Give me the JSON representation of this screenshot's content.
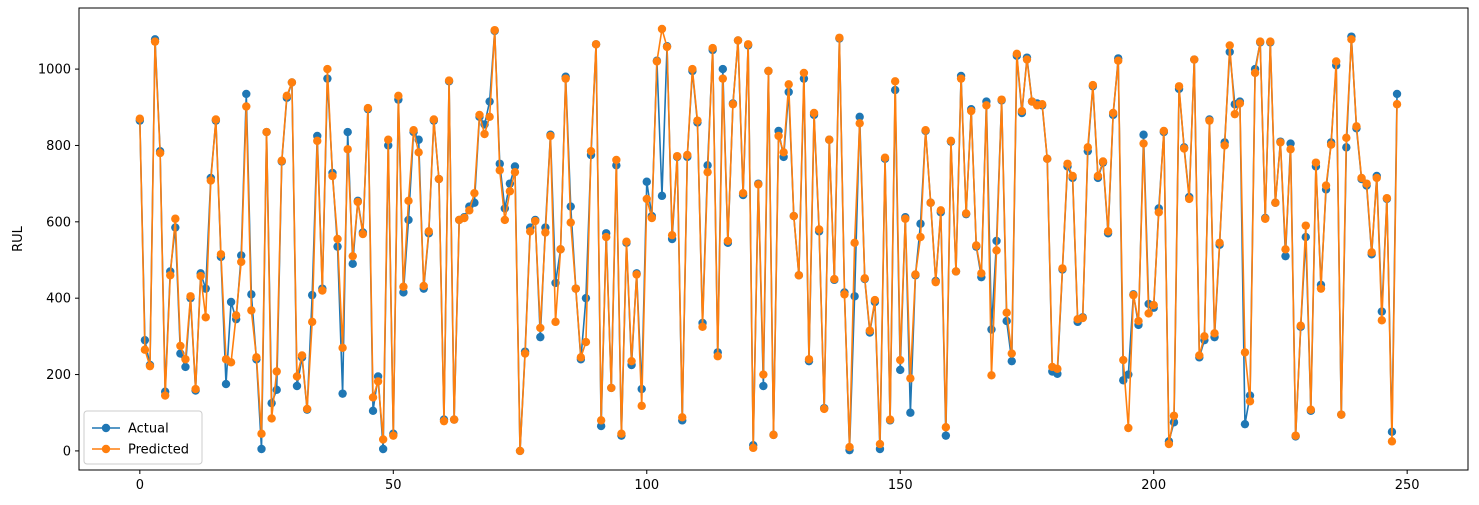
{
  "chart_data": {
    "type": "line",
    "title": "",
    "xlabel": "",
    "ylabel": "RUL",
    "xlim": [
      -12,
      262
    ],
    "ylim": [
      -50,
      1160
    ],
    "xticks": [
      0,
      50,
      100,
      150,
      200,
      250
    ],
    "yticks": [
      0,
      200,
      400,
      600,
      800,
      1000
    ],
    "grid": false,
    "legend_position": "lower-left",
    "x_start": 0,
    "series": [
      {
        "name": "Actual",
        "color": "#1f77b4",
        "marker": "circle",
        "values": [
          865,
          290,
          225,
          1078,
          785,
          155,
          470,
          585,
          255,
          220,
          400,
          158,
          465,
          425,
          715,
          865,
          508,
          175,
          390,
          345,
          512,
          935,
          410,
          240,
          5,
          835,
          125,
          160,
          758,
          925,
          965,
          170,
          245,
          108,
          408,
          825,
          425,
          975,
          728,
          535,
          150,
          835,
          490,
          655,
          572,
          895,
          105,
          195,
          5,
          800,
          45,
          920,
          415,
          605,
          835,
          815,
          425,
          570,
          865,
          712,
          82,
          968,
          82,
          605,
          612,
          640,
          650,
          875,
          855,
          915,
          1100,
          752,
          635,
          700,
          745,
          0,
          260,
          585,
          605,
          298,
          585,
          828,
          440,
          528,
          980,
          640,
          425,
          240,
          400,
          775,
          1065,
          65,
          570,
          165,
          748,
          40,
          545,
          225,
          465,
          162,
          705,
          615,
          1022,
          668,
          1060,
          555,
          770,
          80,
          770,
          995,
          860,
          335,
          748,
          1050,
          258,
          1000,
          545,
          910,
          1075,
          670,
          1062,
          15,
          700,
          170,
          995,
          42,
          838,
          770,
          940,
          615,
          460,
          975,
          235,
          880,
          575,
          112,
          815,
          448,
          1080,
          415,
          2,
          405,
          875,
          450,
          310,
          390,
          5,
          765,
          80,
          945,
          212,
          612,
          100,
          460,
          595,
          838,
          650,
          445,
          625,
          40,
          810,
          470,
          982,
          620,
          895,
          535,
          455,
          915,
          318,
          550,
          918,
          340,
          235,
          1035,
          885,
          1030,
          915,
          910,
          905,
          765,
          208,
          202,
          475,
          745,
          715,
          338,
          350,
          785,
          955,
          715,
          755,
          570,
          880,
          1028,
          185,
          200,
          410,
          330,
          828,
          385,
          375,
          635,
          835,
          25,
          75,
          948,
          795,
          665,
          1025,
          245,
          290,
          868,
          298,
          540,
          808,
          1045,
          908,
          915,
          70,
          145,
          1000,
          1070,
          610,
          1070,
          650,
          810,
          510,
          805,
          38,
          325,
          560,
          105,
          745,
          435,
          685,
          808,
          1010,
          95,
          795,
          1085,
          845,
          712,
          695,
          515,
          720,
          365,
          660,
          50,
          935
        ]
      },
      {
        "name": "Predicted",
        "color": "#ff7f0e",
        "marker": "circle",
        "values": [
          870,
          265,
          222,
          1072,
          780,
          145,
          460,
          608,
          275,
          240,
          405,
          162,
          458,
          350,
          708,
          868,
          515,
          240,
          232,
          355,
          495,
          902,
          368,
          245,
          45,
          835,
          85,
          208,
          760,
          930,
          965,
          195,
          250,
          110,
          338,
          812,
          420,
          1000,
          720,
          555,
          270,
          790,
          510,
          652,
          568,
          898,
          140,
          182,
          30,
          815,
          40,
          930,
          430,
          655,
          840,
          782,
          432,
          575,
          868,
          712,
          78,
          970,
          82,
          605,
          610,
          630,
          675,
          880,
          830,
          875,
          1102,
          735,
          605,
          680,
          730,
          0,
          255,
          575,
          602,
          322,
          572,
          825,
          338,
          528,
          975,
          598,
          425,
          245,
          285,
          785,
          1065,
          80,
          560,
          165,
          762,
          45,
          548,
          235,
          462,
          118,
          660,
          610,
          1020,
          1105,
          1058,
          565,
          772,
          88,
          775,
          1000,
          865,
          325,
          730,
          1055,
          248,
          975,
          550,
          908,
          1075,
          675,
          1065,
          8,
          698,
          200,
          995,
          42,
          825,
          782,
          960,
          615,
          460,
          990,
          240,
          885,
          580,
          110,
          815,
          450,
          1082,
          410,
          10,
          545,
          858,
          452,
          315,
          395,
          18,
          768,
          82,
          968,
          238,
          608,
          190,
          462,
          560,
          840,
          650,
          442,
          630,
          62,
          812,
          470,
          975,
          622,
          890,
          538,
          465,
          905,
          198,
          525,
          920,
          362,
          255,
          1040,
          890,
          1025,
          915,
          905,
          908,
          765,
          220,
          215,
          478,
          752,
          720,
          345,
          348,
          795,
          958,
          720,
          758,
          575,
          885,
          1022,
          238,
          60,
          408,
          340,
          805,
          360,
          382,
          625,
          838,
          18,
          92,
          955,
          792,
          660,
          1025,
          250,
          300,
          865,
          308,
          545,
          800,
          1062,
          882,
          910,
          258,
          130,
          990,
          1072,
          608,
          1072,
          650,
          808,
          528,
          790,
          40,
          328,
          590,
          108,
          755,
          425,
          695,
          802,
          1020,
          95,
          820,
          1078,
          850,
          715,
          700,
          520,
          715,
          342,
          662,
          25,
          908
        ]
      }
    ]
  }
}
